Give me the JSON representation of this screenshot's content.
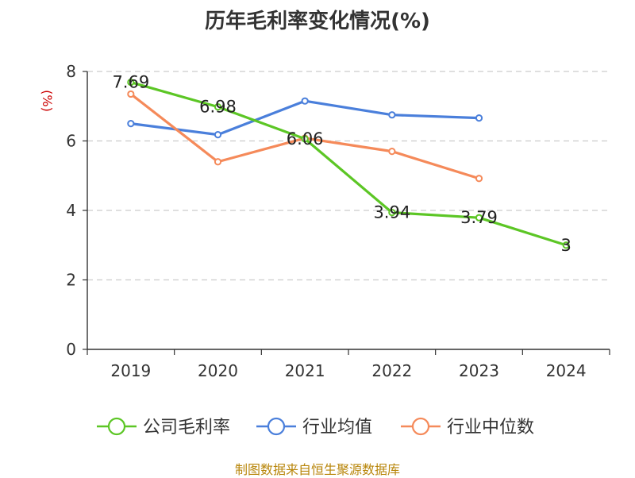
{
  "chart_data": {
    "type": "line",
    "title": "历年毛利率变化情况(%)",
    "ylabel": "(%)",
    "xlabel": "",
    "categories": [
      "2019",
      "2020",
      "2021",
      "2022",
      "2023",
      "2024"
    ],
    "ylim": [
      0,
      8
    ],
    "yticks": [
      0,
      2,
      4,
      6,
      8
    ],
    "grid": true,
    "legend_position": "bottom",
    "series": [
      {
        "name": "公司毛利率",
        "color": "#5cc625",
        "values": [
          7.69,
          6.98,
          6.06,
          3.94,
          3.79,
          3
        ],
        "labels": [
          "7.69",
          "6.98",
          "6.06",
          "3.94",
          "3.79",
          "3"
        ]
      },
      {
        "name": "行业均值",
        "color": "#4a7fdb",
        "values": [
          6.5,
          6.18,
          7.15,
          6.75,
          6.66,
          null
        ]
      },
      {
        "name": "行业中位数",
        "color": "#f58a5a",
        "values": [
          7.35,
          5.4,
          6.08,
          5.7,
          4.92,
          null
        ]
      }
    ]
  },
  "footer": "制图数据来自恒生聚源数据库"
}
